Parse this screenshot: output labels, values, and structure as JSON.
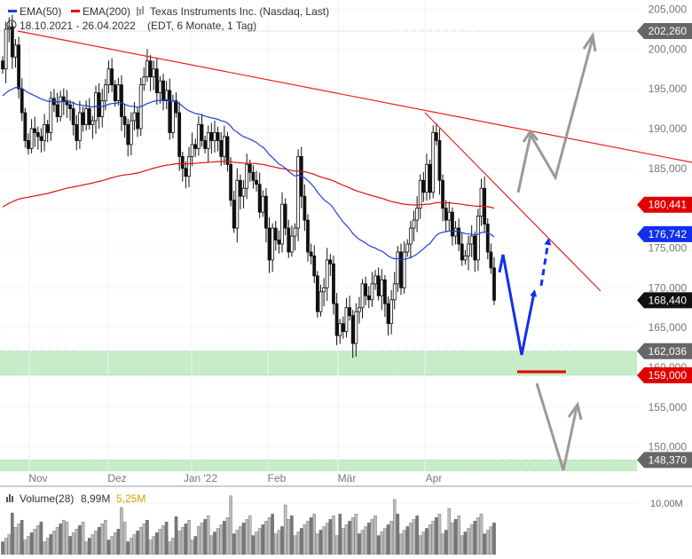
{
  "legend": {
    "ema50_label": "EMA(50)",
    "ema200_label": "EMA(200)",
    "instrument": "Texas Instruments Inc. (Nasdaq, Last)",
    "period": "18.10.2021 - 26.04.2022",
    "timezone": "(EDT, 6 Monate, 1 Tag)"
  },
  "volume_legend": {
    "label": "Volume(28)",
    "value": "8,99M",
    "avg_value": "5,25M"
  },
  "colors": {
    "ema50": "#1f3fe0",
    "ema200": "#dd1111",
    "trendline": "#ee1c1c",
    "support_zone": "#c8ecc8",
    "projection_blue": "#1030ee",
    "projection_gray": "#9a9a9a",
    "tag_dark": "#111111",
    "tag_gray": "#666666",
    "tag_red": "#e00000",
    "tag_blue": "#1030ee",
    "avg_volume": "#d4a000"
  },
  "chart_data": {
    "type": "candlestick",
    "x_tick_labels": [
      "Nov",
      "Dez",
      "Jan '22",
      "Feb",
      "Mär",
      "Apr"
    ],
    "y_tick_labels": [
      "150,000",
      "155,000",
      "160,000",
      "165,000",
      "170,000",
      "175,000",
      "180,000",
      "185,000",
      "190,000",
      "195,000",
      "200,000",
      "205,000"
    ],
    "ylim": [
      146,
      206
    ],
    "price_tags": [
      {
        "label": "202,260",
        "value": 202.26,
        "style": "gray"
      },
      {
        "label": "180,441",
        "value": 180.441,
        "style": "red"
      },
      {
        "label": "176,742",
        "value": 176.742,
        "style": "blue"
      },
      {
        "label": "168,440",
        "value": 168.44,
        "style": "dark"
      },
      {
        "label": "162,036",
        "value": 162.036,
        "style": "gray"
      },
      {
        "label": "159,000",
        "value": 159.0,
        "style": "red"
      },
      {
        "label": "148,370",
        "value": 148.37,
        "style": "gray"
      }
    ],
    "support_zones": [
      [
        159.0,
        162.036
      ],
      [
        147.0,
        148.37
      ]
    ],
    "volume_axis_label": "10,00M",
    "volume_max": 12,
    "ohlc_closes": [
      197.5,
      202.5,
      202.8,
      199.0,
      200.5,
      195.0,
      192.0,
      188.5,
      187.5,
      190.0,
      189.5,
      189.0,
      188.5,
      190.5,
      189.5,
      193.8,
      193.0,
      191.5,
      194.0,
      193.5,
      193.0,
      192.5,
      190.5,
      188.5,
      192.0,
      190.5,
      192.5,
      190.5,
      191.0,
      194.5,
      191.5,
      193.5,
      195.5,
      197.5,
      195.5,
      193.5,
      195.5,
      191.5,
      190.5,
      188.0,
      191.0,
      192.0,
      190.0,
      195.5,
      196.5,
      198.5,
      196.5,
      197.5,
      194.5,
      196.0,
      193.5,
      194.8,
      189.5,
      193.5,
      192.0,
      186.5,
      185.0,
      184.0,
      186.5,
      188.0,
      187.5,
      190.5,
      188.5,
      187.5,
      189.5,
      188.5,
      189.5,
      188.5,
      186.5,
      189.0,
      185.5,
      181.0,
      177.5,
      183.5,
      181.5,
      182.5,
      185.5,
      184.5,
      183.5,
      183.0,
      179.5,
      181.5,
      177.5,
      173.5,
      177.5,
      176.0,
      175.5,
      180.5,
      177.5,
      174.5,
      176.5,
      177.5,
      186.5,
      181.5,
      178.5,
      174.5,
      174.0,
      171.5,
      167.0,
      169.5,
      170.0,
      173.5,
      173.0,
      168.0,
      164.0,
      165.5,
      164.5,
      167.5,
      166.5,
      163.0,
      167.0,
      167.5,
      170.5,
      169.0,
      168.5,
      170.5,
      171.5,
      169.0,
      171.0,
      168.0,
      165.5,
      168.5,
      170.5,
      174.5,
      170.0,
      174.5,
      175.5,
      177.5,
      178.5,
      180.0,
      183.5,
      182.0,
      185.5,
      182.0,
      189.5,
      188.5,
      183.5,
      180.0,
      178.5,
      179.5,
      176.5,
      177.5,
      175.5,
      173.5,
      174.0,
      175.5,
      176.5,
      173.5,
      179.0,
      182.5,
      178.0,
      174.5,
      172.5,
      168.44
    ]
  }
}
